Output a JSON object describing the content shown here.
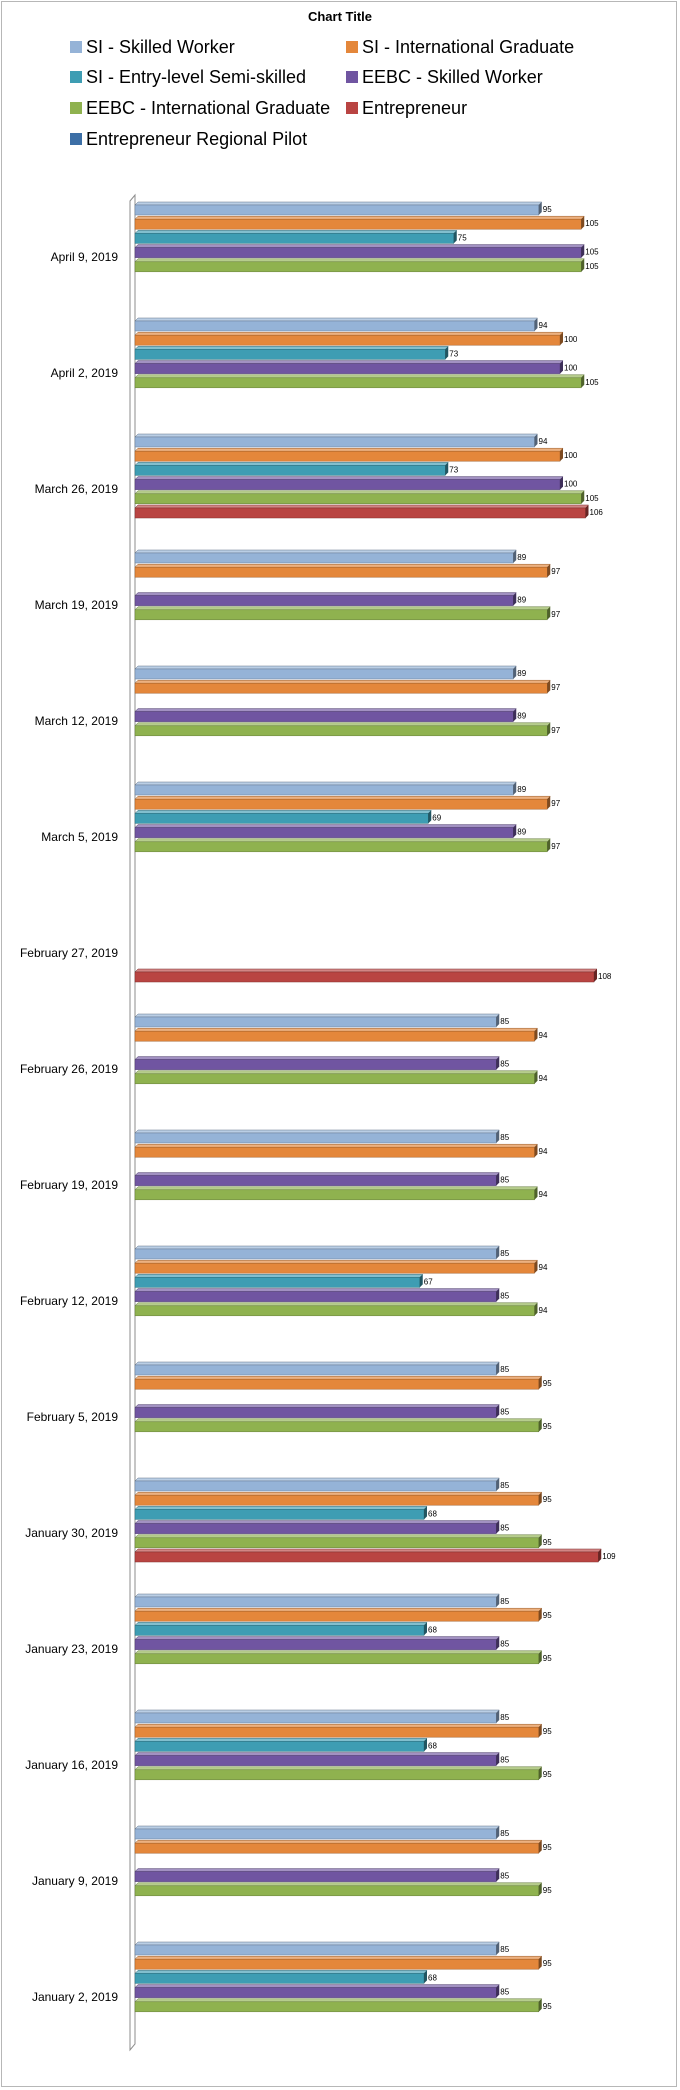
{
  "chart_data": {
    "type": "bar",
    "orientation": "horizontal",
    "title": "Chart Title",
    "xlim": [
      0,
      120
    ],
    "legend_position": "top",
    "series": [
      {
        "name": "SI - Skilled Worker",
        "color": "#95b3d7"
      },
      {
        "name": "SI - International Graduate",
        "color": "#e4873b"
      },
      {
        "name": "SI - Entry-level Semi-skilled",
        "color": "#3e9db3"
      },
      {
        "name": "EEBC - Skilled Worker",
        "color": "#7055a1"
      },
      {
        "name": "EEBC - International Graduate",
        "color": "#8fb24f"
      },
      {
        "name": "Entrepreneur",
        "color": "#b94442"
      },
      {
        "name": "Entrepreneur Regional Pilot",
        "color": "#3c6fa6"
      }
    ],
    "categories": [
      {
        "label": "April 9, 2019",
        "values": [
          95,
          105,
          75,
          105,
          105,
          null,
          null
        ]
      },
      {
        "label": "April 2, 2019",
        "values": [
          94,
          100,
          73,
          100,
          105,
          null,
          null
        ]
      },
      {
        "label": "March 26, 2019",
        "values": [
          94,
          100,
          73,
          100,
          105,
          106,
          null
        ]
      },
      {
        "label": "March 19, 2019",
        "values": [
          89,
          97,
          null,
          89,
          97,
          null,
          null
        ]
      },
      {
        "label": "March 12, 2019",
        "values": [
          89,
          97,
          null,
          89,
          97,
          null,
          null
        ]
      },
      {
        "label": "March 5, 2019",
        "values": [
          89,
          97,
          69,
          89,
          97,
          null,
          null
        ]
      },
      {
        "label": "February 27, 2019",
        "values": [
          null,
          null,
          null,
          null,
          null,
          108,
          null
        ]
      },
      {
        "label": "February 26, 2019",
        "values": [
          85,
          94,
          null,
          85,
          94,
          null,
          null
        ]
      },
      {
        "label": "February 19, 2019",
        "values": [
          85,
          94,
          null,
          85,
          94,
          null,
          null
        ]
      },
      {
        "label": "February 12, 2019",
        "values": [
          85,
          94,
          67,
          85,
          94,
          null,
          null
        ]
      },
      {
        "label": "February 5, 2019",
        "values": [
          85,
          95,
          null,
          85,
          95,
          null,
          null
        ]
      },
      {
        "label": "January 30, 2019",
        "values": [
          85,
          95,
          68,
          85,
          95,
          109,
          null
        ]
      },
      {
        "label": "January 23, 2019",
        "values": [
          85,
          95,
          68,
          85,
          95,
          null,
          null
        ]
      },
      {
        "label": "January 16, 2019",
        "values": [
          85,
          95,
          68,
          85,
          95,
          null,
          null
        ]
      },
      {
        "label": "January 9, 2019",
        "values": [
          85,
          95,
          null,
          85,
          95,
          null,
          null
        ]
      },
      {
        "label": "January 2, 2019",
        "values": [
          85,
          95,
          68,
          85,
          95,
          null,
          null
        ]
      }
    ]
  }
}
